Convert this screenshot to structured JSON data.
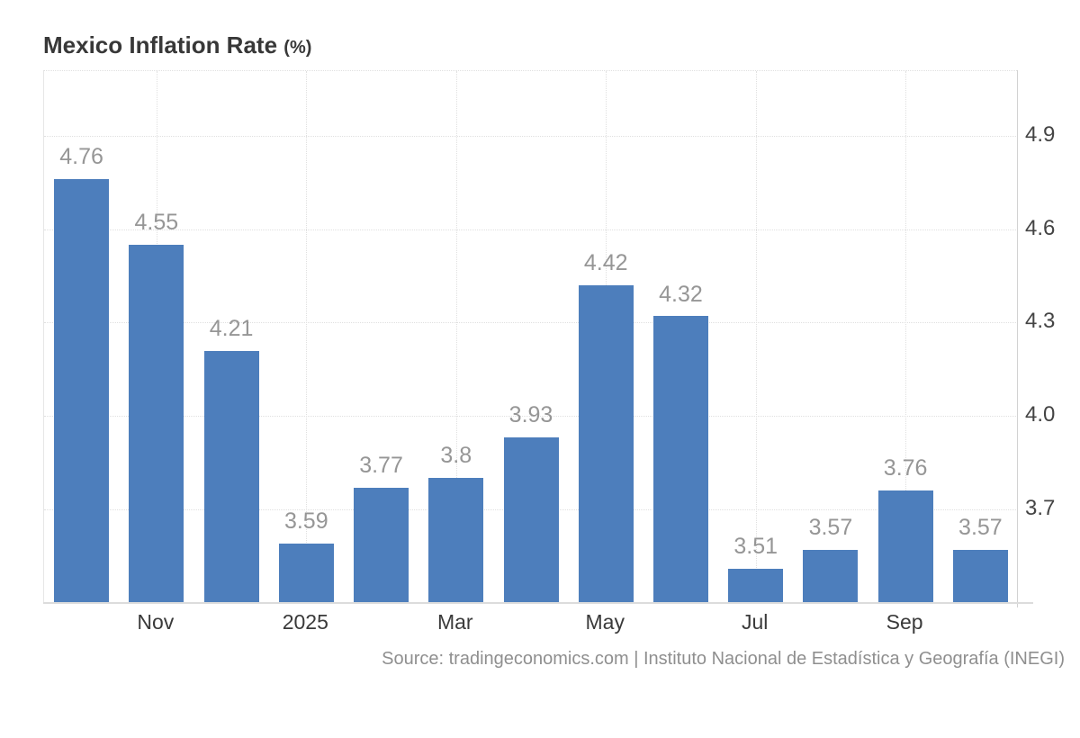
{
  "title": {
    "main": "Mexico Inflation Rate",
    "unit": "(%)"
  },
  "source_line": "Source: tradingeconomics.com | Instituto Nacional de Estadística y Geografía (INEGI)",
  "colors": {
    "bar": "#4d7ebc",
    "title": "#383838",
    "data_label": "#969696",
    "axis_label": "#3a3a3a",
    "grid": "#e0e0e0",
    "source": "#8f8f8f"
  },
  "chart_data": {
    "type": "bar",
    "title": "Mexico Inflation Rate (%)",
    "xlabel": "",
    "ylabel": "",
    "legend": "none",
    "grid": true,
    "ylim": [
      3.396,
      5.108
    ],
    "y_ticks": [
      4.9,
      4.6,
      4.3,
      4.0,
      3.7
    ],
    "x_ticks": [
      {
        "index": 1,
        "label": "Nov"
      },
      {
        "index": 3,
        "label": "2025"
      },
      {
        "index": 5,
        "label": "Mar"
      },
      {
        "index": 7,
        "label": "May"
      },
      {
        "index": 9,
        "label": "Jul"
      },
      {
        "index": 11,
        "label": "Sep"
      }
    ],
    "series": [
      {
        "name": "Mexico Inflation Rate",
        "values": [
          4.76,
          4.55,
          4.21,
          3.59,
          3.77,
          3.8,
          3.93,
          4.42,
          4.32,
          3.51,
          3.57,
          3.76,
          3.57
        ]
      }
    ],
    "value_labels": [
      "4.76",
      "4.55",
      "4.21",
      "3.59",
      "3.77",
      "3.8",
      "3.93",
      "4.42",
      "4.32",
      "3.51",
      "3.57",
      "3.76",
      "3.57"
    ]
  }
}
